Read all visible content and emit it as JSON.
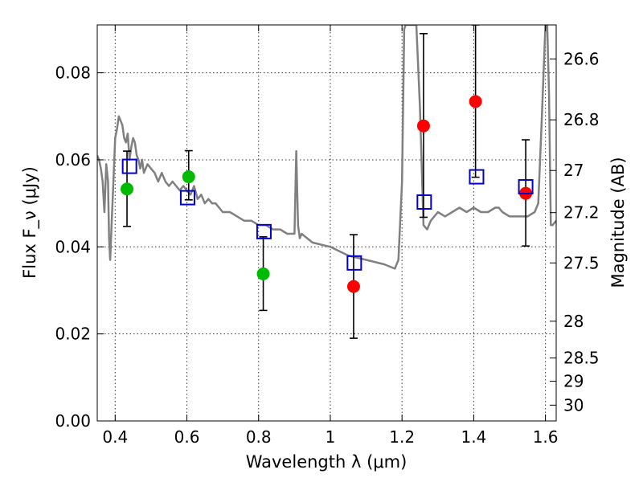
{
  "chart_data": {
    "type": "scatter",
    "xlabel": "Wavelength λ (μm)",
    "ylabel": "Flux F_ν (μJy)",
    "y2label": "Magnitude (AB)",
    "xlim": [
      0.35,
      1.63
    ],
    "ylim": [
      0.0,
      0.091
    ],
    "grid": true,
    "x_ticks": [
      {
        "v": 0.4,
        "label": "0.4"
      },
      {
        "v": 0.6,
        "label": "0.6"
      },
      {
        "v": 0.8,
        "label": "0.8"
      },
      {
        "v": 1.0,
        "label": "1"
      },
      {
        "v": 1.2,
        "label": "1.2"
      },
      {
        "v": 1.4,
        "label": "1.4"
      },
      {
        "v": 1.6,
        "label": "1.6"
      }
    ],
    "y_ticks": [
      {
        "v": 0.0,
        "label": "0.00"
      },
      {
        "v": 0.02,
        "label": "0.02"
      },
      {
        "v": 0.04,
        "label": "0.04"
      },
      {
        "v": 0.06,
        "label": "0.06"
      },
      {
        "v": 0.08,
        "label": "0.08"
      }
    ],
    "mag_ticks": [
      {
        "v": 26.6,
        "label": "26.6"
      },
      {
        "v": 26.8,
        "label": "26.8"
      },
      {
        "v": 27.0,
        "label": "27"
      },
      {
        "v": 27.2,
        "label": "27.2"
      },
      {
        "v": 27.5,
        "label": "27.5"
      },
      {
        "v": 28.0,
        "label": "28"
      },
      {
        "v": 28.5,
        "label": "28.5"
      },
      {
        "v": 29.0,
        "label": "29"
      },
      {
        "v": 30.0,
        "label": "30"
      }
    ],
    "template_color": "#808080",
    "template_spectrum": {
      "x": [
        0.35,
        0.355,
        0.36,
        0.365,
        0.37,
        0.375,
        0.38,
        0.383,
        0.386,
        0.39,
        0.395,
        0.4,
        0.405,
        0.41,
        0.415,
        0.42,
        0.425,
        0.43,
        0.435,
        0.44,
        0.445,
        0.45,
        0.455,
        0.46,
        0.465,
        0.47,
        0.475,
        0.48,
        0.49,
        0.5,
        0.51,
        0.52,
        0.53,
        0.54,
        0.55,
        0.56,
        0.57,
        0.58,
        0.59,
        0.6,
        0.61,
        0.62,
        0.63,
        0.64,
        0.65,
        0.66,
        0.67,
        0.68,
        0.7,
        0.72,
        0.74,
        0.76,
        0.78,
        0.8,
        0.82,
        0.84,
        0.86,
        0.88,
        0.9,
        0.905,
        0.91,
        0.915,
        0.92,
        0.95,
        1.0,
        1.05,
        1.1,
        1.15,
        1.18,
        1.19,
        1.2,
        1.203,
        1.206,
        1.21,
        1.22,
        1.24,
        1.25,
        1.26,
        1.27,
        1.28,
        1.3,
        1.32,
        1.34,
        1.36,
        1.38,
        1.4,
        1.42,
        1.44,
        1.46,
        1.47,
        1.48,
        1.5,
        1.55,
        1.57,
        1.58,
        1.59,
        1.6,
        1.605,
        1.61,
        1.615,
        1.62,
        1.63
      ],
      "y": [
        0.061,
        0.06,
        0.058,
        0.055,
        0.048,
        0.059,
        0.055,
        0.042,
        0.037,
        0.045,
        0.055,
        0.065,
        0.067,
        0.07,
        0.069,
        0.068,
        0.065,
        0.064,
        0.066,
        0.06,
        0.063,
        0.065,
        0.064,
        0.061,
        0.06,
        0.058,
        0.06,
        0.057,
        0.059,
        0.058,
        0.057,
        0.055,
        0.057,
        0.055,
        0.054,
        0.055,
        0.054,
        0.053,
        0.054,
        0.053,
        0.052,
        0.054,
        0.051,
        0.052,
        0.05,
        0.051,
        0.05,
        0.05,
        0.048,
        0.048,
        0.047,
        0.046,
        0.046,
        0.045,
        0.045,
        0.044,
        0.044,
        0.043,
        0.043,
        0.062,
        0.045,
        0.042,
        0.043,
        0.041,
        0.04,
        0.038,
        0.037,
        0.036,
        0.035,
        0.037,
        0.055,
        0.072,
        0.09,
        0.091,
        0.091,
        0.091,
        0.072,
        0.045,
        0.044,
        0.046,
        0.048,
        0.047,
        0.048,
        0.049,
        0.048,
        0.049,
        0.048,
        0.048,
        0.049,
        0.049,
        0.048,
        0.047,
        0.047,
        0.048,
        0.05,
        0.07,
        0.091,
        0.091,
        0.075,
        0.045,
        0.045,
        0.046
      ]
    },
    "series": [
      {
        "marker": "circle",
        "color": "#00bb00",
        "x": [
          0.433,
          0.605,
          0.813
        ],
        "y": [
          0.0533,
          0.0561,
          0.0338
        ]
      },
      {
        "marker": "circle",
        "color": "#ff0000",
        "x": [
          1.065,
          1.26,
          1.405,
          1.545
        ],
        "y": [
          0.0309,
          0.0678,
          0.0734,
          0.0523
        ]
      },
      {
        "marker": "square",
        "color": "#0000cc",
        "x": [
          0.44,
          0.602,
          0.815,
          1.067,
          1.262,
          1.408,
          1.545
        ],
        "y": [
          0.0585,
          0.0513,
          0.0435,
          0.0363,
          0.0503,
          0.0561,
          0.0538
        ]
      }
    ],
    "error_bars": [
      {
        "x": 0.433,
        "y_low": 0.0447,
        "y_high": 0.062
      },
      {
        "x": 0.605,
        "y_low": 0.0508,
        "y_high": 0.0621
      },
      {
        "x": 0.813,
        "y_low": 0.0254,
        "y_high": 0.0423
      },
      {
        "x": 1.065,
        "y_low": 0.019,
        "y_high": 0.0428
      },
      {
        "x": 1.26,
        "y_low": 0.0468,
        "y_high": 0.089
      },
      {
        "x": 1.405,
        "y_low": 0.056,
        "y_high": 0.091
      },
      {
        "x": 1.545,
        "y_low": 0.0402,
        "y_high": 0.0646
      }
    ]
  }
}
